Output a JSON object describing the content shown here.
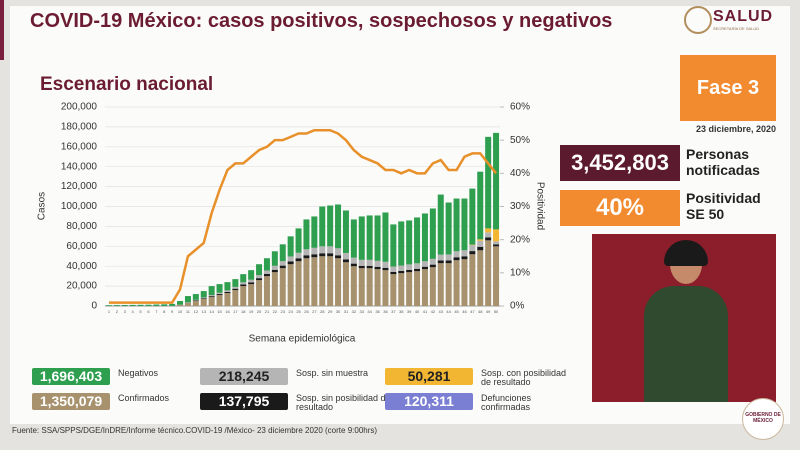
{
  "header": {
    "title": "COVID-19 México: casos positivos, sospechosos y negativos",
    "subtitle": "Escenario nacional",
    "logo": "SALUD",
    "logo_sub": "SECRETARÍA DE SALUD",
    "phase": "Fase 3",
    "date": "23 diciembre, 2020"
  },
  "stats": {
    "notified": "3,452,803",
    "notified_label": "Personas notificadas",
    "positivity": "40%",
    "positivity_label": "Positividad SE 50"
  },
  "deaths": {
    "total_label": "120,311",
    "label": "Defunciones confirmadas",
    "color": "#7b7fd4"
  },
  "source": "Fuente: SSA/SPPS/DGE/InDRE/Informe técnico.COVID-19 /México- 23 diciembre 2020 (corte 9:00hrs)",
  "footer_logo": "GOBIERNO DE MÉXICO",
  "chart_data": {
    "type": "bar",
    "stacked": true,
    "x_label": "Semana epidemiológica",
    "y_label": "Casos",
    "y2_label": "Positividad",
    "categories": [
      "1",
      "2",
      "3",
      "4",
      "5",
      "6",
      "7",
      "8",
      "9",
      "10",
      "11",
      "12",
      "13",
      "14",
      "15",
      "16",
      "17",
      "18",
      "19",
      "20",
      "21",
      "22",
      "23",
      "24",
      "25",
      "26",
      "27",
      "28",
      "29",
      "30",
      "31",
      "32",
      "33",
      "34",
      "35",
      "36",
      "37",
      "38",
      "39",
      "40",
      "41",
      "42",
      "43",
      "44",
      "45",
      "46",
      "47",
      "48",
      "49",
      "50"
    ],
    "ylim": [
      0,
      200000
    ],
    "yticks": [
      0,
      {
        "value": 20000,
        "label": "20,000"
      },
      {
        "value": 40000,
        "label": "40,000"
      },
      {
        "value": 60000,
        "label": "60,000"
      },
      {
        "value": 80000,
        "label": "80,000"
      },
      {
        "value": 100000,
        "label": "100,000"
      },
      {
        "value": 120000,
        "label": "120,000"
      },
      {
        "value": 140000,
        "label": "140,000"
      },
      {
        "value": 160000,
        "label": "160,000"
      },
      {
        "value": 180000,
        "label": "180,000"
      },
      {
        "value": 200000,
        "label": "200,000"
      }
    ],
    "y2lim": [
      0,
      60
    ],
    "y2ticks": [
      {
        "value": 0,
        "label": "0%"
      },
      {
        "value": 10,
        "label": "10%"
      },
      {
        "value": 20,
        "label": "20%"
      },
      {
        "value": 30,
        "label": "30%"
      },
      {
        "value": 40,
        "label": "40%"
      },
      {
        "value": 50,
        "label": "50%"
      },
      {
        "value": 60,
        "label": "60%"
      }
    ],
    "series": [
      {
        "name": "Confirmados",
        "total_label": "1,350,079",
        "color": "#a8926e",
        "values": [
          0,
          0,
          0,
          0,
          0,
          0,
          0,
          0,
          100,
          1000,
          3000,
          5000,
          7000,
          9000,
          11000,
          13000,
          16000,
          20000,
          22000,
          26000,
          30000,
          34000,
          38000,
          42000,
          45000,
          48000,
          49000,
          50000,
          50000,
          48000,
          44000,
          40000,
          38000,
          38000,
          37000,
          36000,
          32000,
          33000,
          34000,
          35000,
          37000,
          39000,
          43000,
          43000,
          46000,
          47000,
          52000,
          56000,
          66000,
          60000
        ]
      },
      {
        "name": "Sosp. sin posibilidad de resultado",
        "total_label": "137,795",
        "color": "#1a1a1a",
        "values": [
          0,
          0,
          0,
          0,
          0,
          0,
          0,
          0,
          0,
          100,
          300,
          500,
          700,
          900,
          1000,
          1200,
          1400,
          1600,
          1800,
          2000,
          2200,
          2400,
          2600,
          2800,
          3000,
          3000,
          3000,
          3000,
          3000,
          3000,
          2800,
          2600,
          2400,
          2400,
          2400,
          2400,
          2200,
          2200,
          2300,
          2400,
          2500,
          2600,
          2800,
          2800,
          3000,
          3000,
          3200,
          3500,
          3000,
          2000
        ]
      },
      {
        "name": "Sosp. sin muestra",
        "total_label": "218,245",
        "color": "#b5b5b5",
        "values": [
          0,
          0,
          0,
          0,
          0,
          0,
          0,
          0,
          0,
          200,
          500,
          700,
          900,
          1100,
          1300,
          1500,
          1800,
          2200,
          2600,
          3000,
          3500,
          4000,
          4500,
          5000,
          5500,
          6000,
          6500,
          7000,
          7000,
          7000,
          6500,
          6000,
          6000,
          6000,
          6000,
          6000,
          5500,
          5500,
          5500,
          5500,
          5500,
          5800,
          5800,
          6000,
          6000,
          6000,
          6000,
          6000,
          5000,
          3000
        ]
      },
      {
        "name": "Sosp. con posibilidad de resultado",
        "total_label": "50,281",
        "color": "#f2b632",
        "values": [
          0,
          0,
          0,
          0,
          0,
          0,
          0,
          0,
          0,
          0,
          0,
          0,
          0,
          0,
          0,
          0,
          0,
          0,
          0,
          0,
          0,
          0,
          0,
          0,
          0,
          0,
          0,
          0,
          0,
          0,
          0,
          0,
          0,
          0,
          0,
          0,
          0,
          0,
          0,
          0,
          0,
          0,
          0,
          0,
          0,
          0,
          500,
          1500,
          4000,
          12000
        ]
      },
      {
        "name": "Negativos",
        "total_label": "1,696,403",
        "color": "#2e9e4f",
        "values": [
          800,
          900,
          1000,
          1100,
          1200,
          1300,
          1500,
          1700,
          2000,
          3700,
          6200,
          5800,
          6400,
          9000,
          8700,
          8300,
          7800,
          8200,
          9600,
          11000,
          12300,
          14600,
          16900,
          20200,
          24500,
          30000,
          31500,
          40000,
          41000,
          44000,
          42700,
          38400,
          43600,
          44600,
          45600,
          49600,
          42300,
          44300,
          44200,
          46100,
          48000,
          50600,
          60400,
          52200,
          53000,
          52000,
          56300,
          68000,
          92000,
          97000
        ]
      },
      {
        "type": "line",
        "axis": "y2",
        "color": "#e8902a",
        "values": [
          1,
          1,
          1,
          1,
          1,
          1,
          1,
          1,
          1,
          5,
          15,
          17,
          19,
          28,
          35,
          41,
          43,
          43,
          45,
          47,
          48,
          50,
          50,
          51,
          52,
          52,
          53,
          53,
          53,
          52,
          50,
          47,
          45,
          44,
          43,
          41,
          41,
          40,
          41,
          40,
          40,
          43,
          44,
          41,
          41,
          45,
          46,
          46,
          43,
          40
        ]
      }
    ]
  }
}
